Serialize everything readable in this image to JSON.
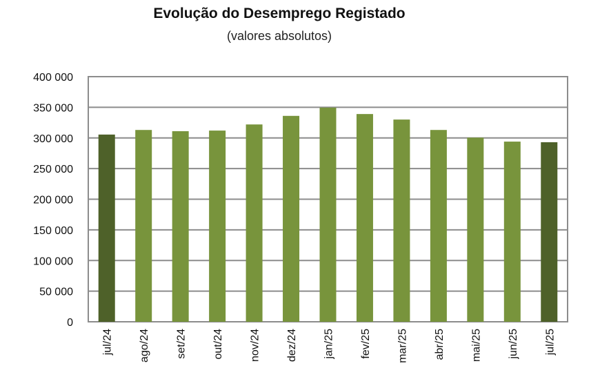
{
  "chart_data": {
    "type": "bar",
    "title": "Evolução do Desemprego Registado",
    "subtitle": "(valores absolutos)",
    "categories": [
      "jul/24",
      "ago/24",
      "set/24",
      "out/24",
      "nov/24",
      "dez/24",
      "jan/25",
      "fev/25",
      "mar/25",
      "abr/25",
      "mai/25",
      "jun/25",
      "jul/25"
    ],
    "values": [
      305500,
      313000,
      311000,
      312000,
      322000,
      336000,
      349500,
      339000,
      330000,
      313000,
      300500,
      294000,
      293000
    ],
    "highlighted": [
      0,
      12
    ],
    "ylim": [
      0,
      400000
    ],
    "yticks": [
      0,
      50000,
      100000,
      150000,
      200000,
      250000,
      300000,
      350000,
      400000
    ],
    "ytick_labels": [
      "0",
      "50 000",
      "100 000",
      "150 000",
      "200 000",
      "250 000",
      "300 000",
      "350 000",
      "400 000"
    ],
    "grid": true,
    "colors": {
      "bar": "#78943c",
      "highlight": "#4e6129",
      "grid": "#8c8c8c"
    }
  }
}
